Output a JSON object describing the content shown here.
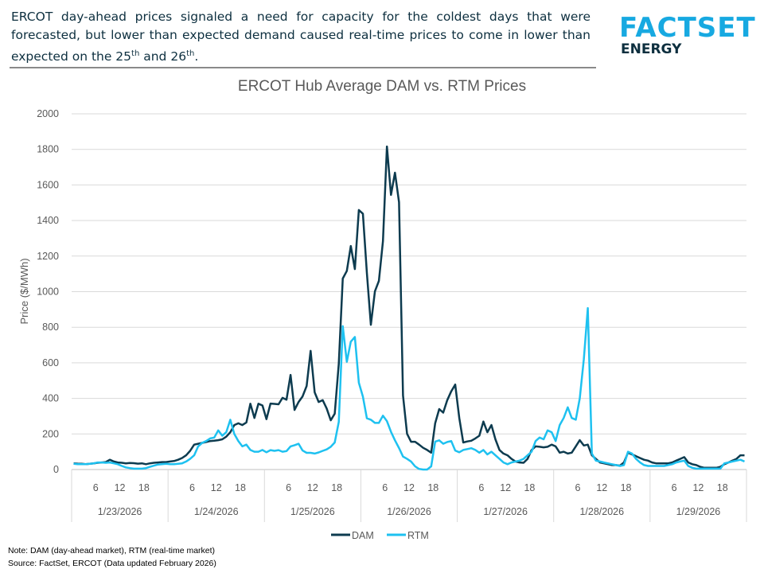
{
  "headline": {
    "text_before": "ERCOT day-ahead prices signaled a need for capacity for the coldest days that were forecasted, but lower than expected demand caused real-time prices to come in lower than expected on the 25",
    "sup1": "th",
    "text_mid": " and 26",
    "sup2": "th",
    "text_after": "."
  },
  "logo": {
    "line1": "FACTSET",
    "line2": "ENERGY"
  },
  "colors": {
    "dam": "#0d3b4f",
    "rtm": "#1ec1f0",
    "brand": "#17a9e1",
    "grid": "#d9d9d9"
  },
  "chart_data": {
    "type": "line",
    "title": "ERCOT Hub Average DAM vs. RTM Prices",
    "ylabel": "Price ($/MWh)",
    "xlabel": "",
    "ylim": [
      0,
      2000
    ],
    "yticks": [
      0,
      200,
      400,
      600,
      800,
      1000,
      1200,
      1400,
      1600,
      1800,
      2000
    ],
    "grid": true,
    "legend": "bottom",
    "days": [
      "1/23/2026",
      "1/24/2026",
      "1/25/2026",
      "1/26/2026",
      "1/27/2026",
      "1/28/2026",
      "1/29/2026"
    ],
    "hour_ticks": [
      "6",
      "12",
      "18"
    ],
    "series": [
      {
        "name": "DAM",
        "values": [
          35,
          33,
          32,
          30,
          32,
          35,
          38,
          40,
          42,
          55,
          45,
          40,
          38,
          35,
          37,
          36,
          33,
          35,
          30,
          35,
          38,
          40,
          42,
          42,
          45,
          48,
          55,
          65,
          80,
          105,
          140,
          145,
          150,
          155,
          160,
          162,
          165,
          170,
          185,
          210,
          250,
          260,
          250,
          265,
          370,
          290,
          370,
          360,
          283,
          371,
          369,
          367,
          403,
          393,
          532,
          335,
          380,
          411,
          470,
          667,
          434,
          380,
          390,
          343,
          277,
          314,
          595,
          1074,
          1117,
          1257,
          1127,
          1459,
          1438,
          1105,
          814,
          1002,
          1061,
          1284,
          1816,
          1544,
          1669,
          1503,
          416,
          201,
          156,
          156,
          140,
          122,
          110,
          95,
          260,
          340,
          320,
          390,
          440,
          478,
          290,
          152,
          158,
          162,
          175,
          190,
          270,
          210,
          250,
          170,
          110,
          90,
          80,
          60,
          45,
          40,
          38,
          60,
          110,
          130,
          128,
          125,
          128,
          140,
          130,
          95,
          100,
          90,
          95,
          130,
          165,
          135,
          140,
          80,
          60,
          40,
          35,
          30,
          25,
          25,
          22,
          40,
          95,
          85,
          75,
          65,
          55,
          50,
          40,
          35,
          35,
          35,
          35,
          40,
          50,
          60,
          70,
          40,
          30,
          25,
          15,
          10,
          10,
          10,
          10,
          15,
          30,
          40,
          50,
          60,
          80,
          80
        ]
      },
      {
        "name": "RTM",
        "values": [
          32,
          30,
          30,
          30,
          32,
          35,
          40,
          40,
          38,
          40,
          35,
          30,
          20,
          12,
          8,
          5,
          5,
          5,
          8,
          15,
          22,
          28,
          30,
          32,
          30,
          30,
          32,
          35,
          45,
          60,
          80,
          130,
          150,
          160,
          175,
          180,
          220,
          190,
          210,
          280,
          200,
          160,
          130,
          140,
          110,
          100,
          100,
          110,
          97,
          109,
          105,
          109,
          100,
          104,
          130,
          137,
          145,
          107,
          94,
          94,
          90,
          96,
          105,
          113,
          128,
          152,
          268,
          806,
          606,
          719,
          745,
          488,
          410,
          288,
          280,
          262,
          262,
          303,
          272,
          212,
          164,
          121,
          73,
          60,
          45,
          18,
          3,
          0,
          0,
          18,
          157,
          164,
          145,
          155,
          160,
          107,
          97,
          110,
          115,
          120,
          110,
          95,
          110,
          85,
          100,
          80,
          60,
          40,
          30,
          40,
          45,
          50,
          60,
          80,
          100,
          160,
          180,
          170,
          220,
          210,
          160,
          250,
          290,
          350,
          290,
          280,
          400,
          620,
          908,
          90,
          50,
          45,
          40,
          35,
          30,
          25,
          20,
          25,
          100,
          90,
          60,
          40,
          25,
          20,
          20,
          20,
          20,
          20,
          25,
          30,
          40,
          45,
          50,
          20,
          10,
          5,
          5,
          5,
          5,
          5,
          5,
          5,
          35,
          40,
          45,
          50,
          55,
          45
        ]
      }
    ]
  },
  "notes": {
    "note": "Note: DAM (day-ahead market), RTM (real-time market)",
    "source": "Source: FactSet, ERCOT (Data updated February 2026)"
  }
}
